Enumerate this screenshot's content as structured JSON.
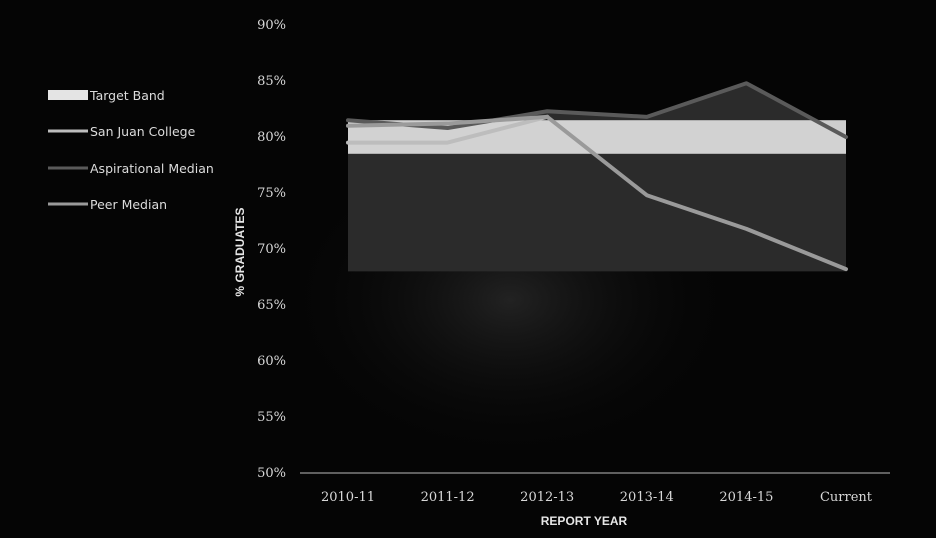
{
  "chart_data": {
    "type": "line",
    "title": "",
    "xlabel": "REPORT YEAR",
    "ylabel": "% GRADUATES",
    "categories": [
      "2010-11",
      "2011-12",
      "2012-13",
      "2013-14",
      "2014-15",
      "Current"
    ],
    "ylim": [
      50,
      90
    ],
    "y_ticks": [
      50,
      55,
      60,
      65,
      70,
      75,
      80,
      85,
      90
    ],
    "y_tick_suffix": "%",
    "target_band": {
      "name": "Target Band",
      "low": 78.5,
      "high": 81.5,
      "color": "#e4e4e4"
    },
    "series": [
      {
        "name": "San Juan College",
        "values": [
          79.5,
          79.5,
          81.8,
          null,
          null,
          null
        ],
        "color": "#bdbdbd"
      },
      {
        "name": "Aspirational Median",
        "values": [
          81.5,
          80.8,
          82.3,
          81.8,
          84.8,
          80.0
        ],
        "color": "#5a5a5a"
      },
      {
        "name": "Peer Median",
        "values": [
          81.0,
          81.2,
          81.8,
          74.8,
          71.8,
          68.2
        ],
        "color": "#9a9a9a"
      }
    ],
    "dark_region_floor": 68,
    "grid": false,
    "legend_position": "left"
  }
}
